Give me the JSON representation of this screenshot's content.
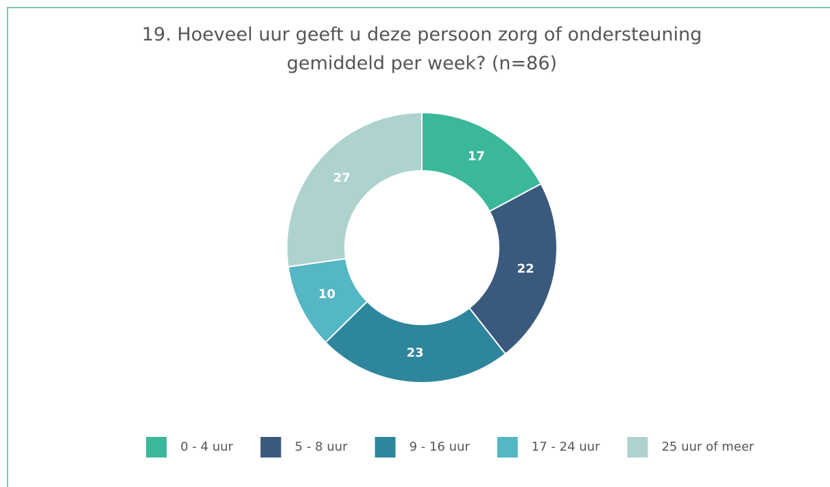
{
  "chart_data": {
    "type": "donut",
    "title": "19. Hoeveel uur geeft u deze persoon zorg of ondersteuning gemiddeld per week? (n=86)",
    "categories": [
      "0 - 4 uur",
      "5 - 8 uur",
      "9 - 16 uur",
      "17 - 24 uur",
      "25 uur of meer"
    ],
    "values": [
      17,
      22,
      23,
      10,
      27
    ],
    "colors": [
      "#3bb89b",
      "#3a5a7d",
      "#2e869c",
      "#55b6c4",
      "#aed3cf"
    ],
    "legend": "bottom"
  }
}
